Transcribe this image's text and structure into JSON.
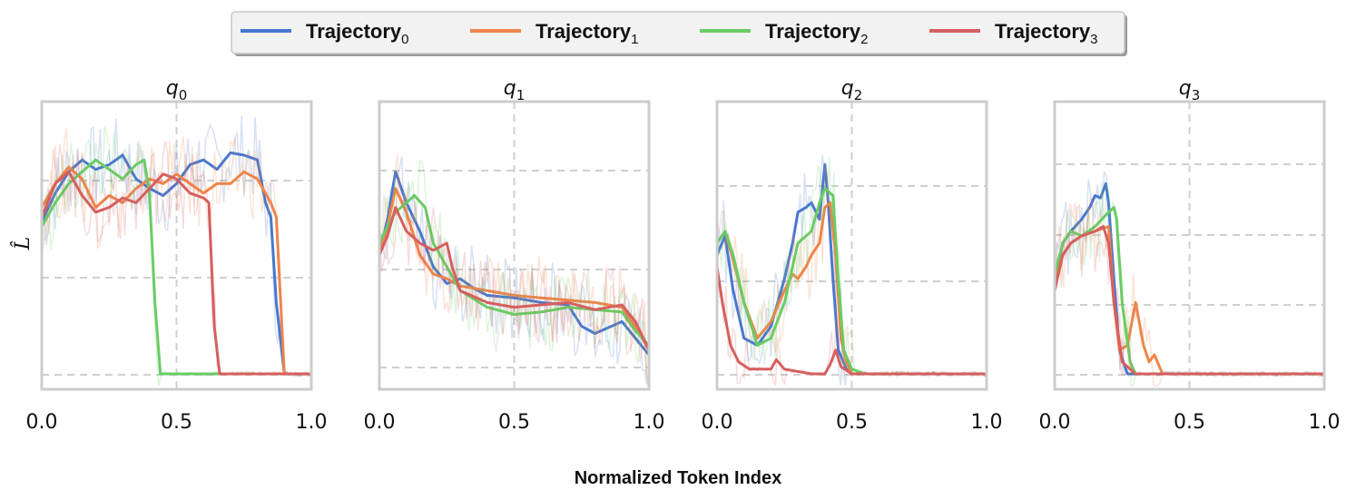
{
  "chart_data": {
    "type": "line",
    "xlabel": "Normalized Token Index",
    "ylabel": "L̂",
    "xlim": [
      0,
      1
    ],
    "ylim": [
      0,
      1
    ],
    "xticks": [
      "0.0",
      "0.5",
      "1.0"
    ],
    "legend": {
      "placement": "top-center",
      "entries": [
        {
          "base": "Trajectory",
          "sub": "0",
          "color": "#4878cf"
        },
        {
          "base": "Trajectory",
          "sub": "1",
          "color": "#ee854a"
        },
        {
          "base": "Trajectory",
          "sub": "2",
          "color": "#6acc64"
        },
        {
          "base": "Trajectory",
          "sub": "3",
          "color": "#d65f5f"
        }
      ]
    },
    "panels": [
      {
        "title_base": "q",
        "title_sub": "0",
        "series": [
          {
            "name": "Trajectory0",
            "x": [
              0,
              0.05,
              0.1,
              0.15,
              0.2,
              0.25,
              0.3,
              0.35,
              0.4,
              0.45,
              0.5,
              0.55,
              0.6,
              0.65,
              0.7,
              0.75,
              0.8,
              0.83,
              0.85,
              0.87,
              0.9,
              1.0
            ],
            "y": [
              0.64,
              0.76,
              0.85,
              0.9,
              0.86,
              0.88,
              0.92,
              0.82,
              0.78,
              0.75,
              0.8,
              0.88,
              0.9,
              0.86,
              0.93,
              0.92,
              0.9,
              0.72,
              0.66,
              0.3,
              0.0,
              0.0
            ]
          },
          {
            "name": "Trajectory1",
            "x": [
              0,
              0.05,
              0.1,
              0.15,
              0.2,
              0.25,
              0.3,
              0.35,
              0.4,
              0.45,
              0.5,
              0.55,
              0.6,
              0.65,
              0.7,
              0.75,
              0.8,
              0.85,
              0.87,
              0.9,
              1.0
            ],
            "y": [
              0.7,
              0.8,
              0.87,
              0.82,
              0.7,
              0.75,
              0.72,
              0.78,
              0.82,
              0.8,
              0.84,
              0.8,
              0.76,
              0.8,
              0.8,
              0.85,
              0.82,
              0.72,
              0.66,
              0.0,
              0.0
            ]
          },
          {
            "name": "Trajectory2",
            "x": [
              0,
              0.05,
              0.1,
              0.15,
              0.2,
              0.25,
              0.3,
              0.35,
              0.38,
              0.4,
              0.42,
              0.44,
              1.0
            ],
            "y": [
              0.62,
              0.72,
              0.8,
              0.85,
              0.9,
              0.86,
              0.82,
              0.88,
              0.9,
              0.75,
              0.3,
              0.0,
              0.0
            ]
          },
          {
            "name": "Trajectory3",
            "x": [
              0,
              0.05,
              0.1,
              0.15,
              0.2,
              0.25,
              0.3,
              0.35,
              0.4,
              0.45,
              0.5,
              0.55,
              0.6,
              0.62,
              0.64,
              0.66,
              1.0
            ],
            "y": [
              0.66,
              0.8,
              0.85,
              0.75,
              0.68,
              0.7,
              0.74,
              0.72,
              0.78,
              0.84,
              0.82,
              0.76,
              0.74,
              0.72,
              0.2,
              0.0,
              0.0
            ]
          }
        ]
      },
      {
        "title_base": "q",
        "title_sub": "1",
        "series": [
          {
            "name": "Trajectory0",
            "x": [
              0,
              0.03,
              0.06,
              0.1,
              0.15,
              0.2,
              0.25,
              0.3,
              0.35,
              0.4,
              0.5,
              0.6,
              0.7,
              0.75,
              0.8,
              0.9,
              0.95,
              1.0
            ],
            "y": [
              0.5,
              0.65,
              0.85,
              0.72,
              0.6,
              0.45,
              0.38,
              0.4,
              0.36,
              0.33,
              0.32,
              0.3,
              0.29,
              0.2,
              0.17,
              0.22,
              0.15,
              0.08
            ]
          },
          {
            "name": "Trajectory1",
            "x": [
              0,
              0.03,
              0.06,
              0.1,
              0.15,
              0.2,
              0.25,
              0.3,
              0.4,
              0.5,
              0.6,
              0.7,
              0.8,
              0.9,
              0.95,
              1.0
            ],
            "y": [
              0.5,
              0.62,
              0.78,
              0.68,
              0.5,
              0.42,
              0.4,
              0.37,
              0.35,
              0.33,
              0.32,
              0.31,
              0.3,
              0.28,
              0.2,
              0.1
            ]
          },
          {
            "name": "Trajectory2",
            "x": [
              0,
              0.03,
              0.06,
              0.1,
              0.13,
              0.17,
              0.2,
              0.25,
              0.3,
              0.4,
              0.5,
              0.6,
              0.7,
              0.8,
              0.9,
              0.95,
              1.0
            ],
            "y": [
              0.55,
              0.62,
              0.68,
              0.72,
              0.75,
              0.7,
              0.55,
              0.45,
              0.35,
              0.28,
              0.25,
              0.26,
              0.28,
              0.27,
              0.26,
              0.18,
              0.12
            ]
          },
          {
            "name": "Trajectory3",
            "x": [
              0,
              0.03,
              0.06,
              0.1,
              0.15,
              0.2,
              0.25,
              0.27,
              0.3,
              0.4,
              0.5,
              0.6,
              0.7,
              0.8,
              0.9,
              0.95,
              1.0
            ],
            "y": [
              0.5,
              0.58,
              0.7,
              0.6,
              0.55,
              0.52,
              0.55,
              0.45,
              0.35,
              0.3,
              0.28,
              0.29,
              0.3,
              0.27,
              0.29,
              0.22,
              0.1
            ]
          }
        ]
      },
      {
        "title_base": "q",
        "title_sub": "2",
        "series": [
          {
            "name": "Trajectory0",
            "x": [
              0,
              0.03,
              0.06,
              0.1,
              0.15,
              0.2,
              0.25,
              0.28,
              0.3,
              0.33,
              0.35,
              0.38,
              0.4,
              0.41,
              0.43,
              0.45,
              0.48,
              0.5,
              1.0
            ],
            "y": [
              0.5,
              0.58,
              0.35,
              0.15,
              0.12,
              0.2,
              0.4,
              0.55,
              0.68,
              0.7,
              0.72,
              0.65,
              0.88,
              0.76,
              0.4,
              0.1,
              0.02,
              0.0,
              0.0
            ]
          },
          {
            "name": "Trajectory1",
            "x": [
              0,
              0.03,
              0.06,
              0.1,
              0.15,
              0.2,
              0.25,
              0.28,
              0.3,
              0.33,
              0.35,
              0.38,
              0.4,
              0.42,
              0.44,
              0.46,
              0.48,
              0.5,
              1.0
            ],
            "y": [
              0.55,
              0.6,
              0.48,
              0.3,
              0.15,
              0.22,
              0.35,
              0.42,
              0.4,
              0.45,
              0.5,
              0.55,
              0.7,
              0.72,
              0.5,
              0.15,
              0.05,
              0.0,
              0.0
            ]
          },
          {
            "name": "Trajectory2",
            "x": [
              0,
              0.03,
              0.06,
              0.1,
              0.15,
              0.2,
              0.25,
              0.3,
              0.35,
              0.38,
              0.4,
              0.43,
              0.45,
              0.47,
              0.5,
              0.55,
              1.0
            ],
            "y": [
              0.55,
              0.6,
              0.5,
              0.3,
              0.12,
              0.15,
              0.3,
              0.55,
              0.6,
              0.72,
              0.78,
              0.75,
              0.4,
              0.1,
              0.02,
              0.0,
              0.0
            ]
          },
          {
            "name": "Trajectory3",
            "x": [
              0,
              0.02,
              0.05,
              0.08,
              0.12,
              0.2,
              0.22,
              0.25,
              0.35,
              0.4,
              0.42,
              0.44,
              0.46,
              0.5,
              1.0
            ],
            "y": [
              0.45,
              0.3,
              0.12,
              0.05,
              0.02,
              0.02,
              0.06,
              0.02,
              0.0,
              0.0,
              0.04,
              0.1,
              0.03,
              0.0,
              0.0
            ]
          }
        ]
      },
      {
        "title_base": "q",
        "title_sub": "3",
        "series": [
          {
            "name": "Trajectory0",
            "x": [
              0,
              0.03,
              0.06,
              0.1,
              0.13,
              0.15,
              0.17,
              0.19,
              0.2,
              0.22,
              0.24,
              0.27,
              0.3,
              1.0
            ],
            "y": [
              0.4,
              0.55,
              0.6,
              0.65,
              0.7,
              0.75,
              0.74,
              0.8,
              0.72,
              0.4,
              0.1,
              0.0,
              0.0,
              0.0
            ]
          },
          {
            "name": "Trajectory1",
            "x": [
              0,
              0.03,
              0.06,
              0.1,
              0.15,
              0.2,
              0.22,
              0.24,
              0.27,
              0.3,
              0.33,
              0.35,
              0.37,
              0.4,
              1.0
            ],
            "y": [
              0.4,
              0.5,
              0.55,
              0.58,
              0.6,
              0.62,
              0.3,
              0.1,
              0.12,
              0.3,
              0.12,
              0.05,
              0.08,
              0.0,
              0.0
            ]
          },
          {
            "name": "Trajectory2",
            "x": [
              0,
              0.03,
              0.06,
              0.1,
              0.15,
              0.2,
              0.22,
              0.23,
              0.25,
              0.28,
              0.3,
              1.0
            ],
            "y": [
              0.42,
              0.55,
              0.6,
              0.58,
              0.62,
              0.68,
              0.7,
              0.65,
              0.3,
              0.05,
              0.0,
              0.0
            ]
          },
          {
            "name": "Trajectory3",
            "x": [
              0,
              0.03,
              0.06,
              0.1,
              0.15,
              0.18,
              0.2,
              0.22,
              0.25,
              0.3,
              1.0
            ],
            "y": [
              0.35,
              0.5,
              0.55,
              0.58,
              0.6,
              0.62,
              0.55,
              0.3,
              0.05,
              0.0,
              0.0
            ]
          }
        ]
      }
    ]
  }
}
